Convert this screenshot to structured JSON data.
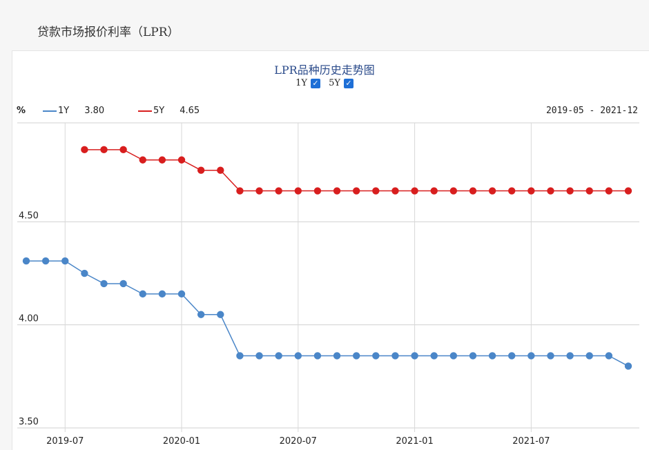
{
  "page": {
    "heading": "贷款市场报价利率（LPR）"
  },
  "toggles": [
    {
      "label": "1Y",
      "checked": true
    },
    {
      "label": "5Y",
      "checked": true
    }
  ],
  "legend": {
    "unit": "%",
    "items": [
      {
        "name": "1Y",
        "latest": "3.80",
        "color": "#4a86c8"
      },
      {
        "name": "5Y",
        "latest": "4.65",
        "color": "#d81e1e"
      }
    ],
    "date_range": "2019-05 - 2021-12"
  },
  "chart_data": {
    "type": "line",
    "title": "LPR品种历史走势图",
    "xlabel": "",
    "ylabel": "%",
    "ylim": [
      3.5,
      4.98
    ],
    "yticks": [
      {
        "value": 4.5,
        "label": "4.50"
      },
      {
        "value": 4.0,
        "label": "4.00"
      },
      {
        "value": 3.5,
        "label": "3.50"
      }
    ],
    "xticks": [
      "2019-07",
      "2020-01",
      "2020-07",
      "2021-01",
      "2021-07"
    ],
    "grid": true,
    "legend_position": "top-left",
    "x": [
      "2019-05",
      "2019-06",
      "2019-07",
      "2019-08",
      "2019-09",
      "2019-10",
      "2019-11",
      "2019-12",
      "2020-01",
      "2020-02",
      "2020-03",
      "2020-04",
      "2020-05",
      "2020-06",
      "2020-07",
      "2020-08",
      "2020-09",
      "2020-10",
      "2020-11",
      "2020-12",
      "2021-01",
      "2021-02",
      "2021-03",
      "2021-04",
      "2021-05",
      "2021-06",
      "2021-07",
      "2021-08",
      "2021-09",
      "2021-10",
      "2021-11",
      "2021-12"
    ],
    "series": [
      {
        "name": "1Y",
        "color": "#4a86c8",
        "values": [
          4.31,
          4.31,
          4.31,
          4.25,
          4.2,
          4.2,
          4.15,
          4.15,
          4.15,
          4.05,
          4.05,
          3.85,
          3.85,
          3.85,
          3.85,
          3.85,
          3.85,
          3.85,
          3.85,
          3.85,
          3.85,
          3.85,
          3.85,
          3.85,
          3.85,
          3.85,
          3.85,
          3.85,
          3.85,
          3.85,
          3.85,
          3.8
        ]
      },
      {
        "name": "5Y",
        "color": "#d81e1e",
        "values": [
          null,
          null,
          null,
          4.85,
          4.85,
          4.85,
          4.8,
          4.8,
          4.8,
          4.75,
          4.75,
          4.65,
          4.65,
          4.65,
          4.65,
          4.65,
          4.65,
          4.65,
          4.65,
          4.65,
          4.65,
          4.65,
          4.65,
          4.65,
          4.65,
          4.65,
          4.65,
          4.65,
          4.65,
          4.65,
          4.65,
          4.65
        ]
      }
    ]
  }
}
